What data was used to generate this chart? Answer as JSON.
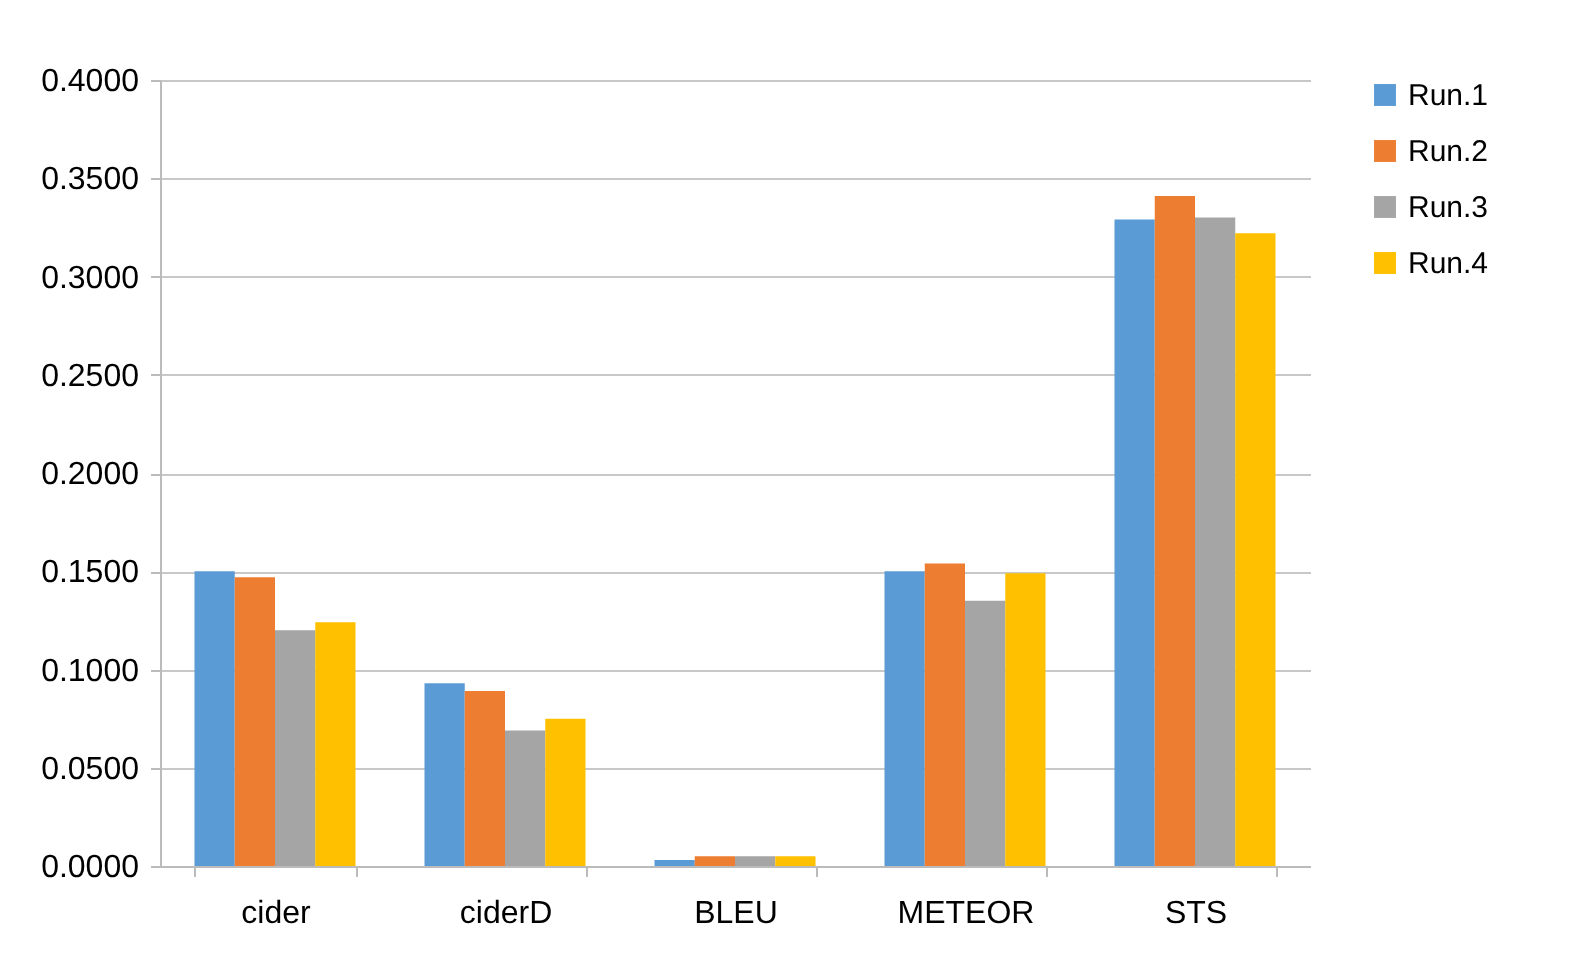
{
  "chart_data": {
    "type": "bar",
    "categories": [
      "cider",
      "ciderD",
      "BLEU",
      "METEOR",
      "STS"
    ],
    "series": [
      {
        "name": "Run.1",
        "color": "#5b9bd5",
        "values": [
          0.15,
          0.093,
          0.003,
          0.15,
          0.329
        ]
      },
      {
        "name": "Run.2",
        "color": "#ed7d31",
        "values": [
          0.147,
          0.089,
          0.005,
          0.154,
          0.341
        ]
      },
      {
        "name": "Run.3",
        "color": "#a5a5a5",
        "values": [
          0.12,
          0.069,
          0.005,
          0.135,
          0.33
        ]
      },
      {
        "name": "Run.4",
        "color": "#ffc000",
        "values": [
          0.124,
          0.075,
          0.005,
          0.149,
          0.322
        ]
      }
    ],
    "ylim": [
      0,
      0.4
    ],
    "yticks": [
      {
        "value": 0,
        "label": "0.0000"
      },
      {
        "value": 0.05,
        "label": "0.0500"
      },
      {
        "value": 0.1,
        "label": "0.1000"
      },
      {
        "value": 0.15,
        "label": "0.1500"
      },
      {
        "value": 0.2,
        "label": "0.2000"
      },
      {
        "value": 0.25,
        "label": "0.2500"
      },
      {
        "value": 0.3,
        "label": "0.3000"
      },
      {
        "value": 0.35,
        "label": "0.3500"
      },
      {
        "value": 0.4,
        "label": "0.4000"
      }
    ],
    "grid": "y",
    "legend": "right"
  }
}
